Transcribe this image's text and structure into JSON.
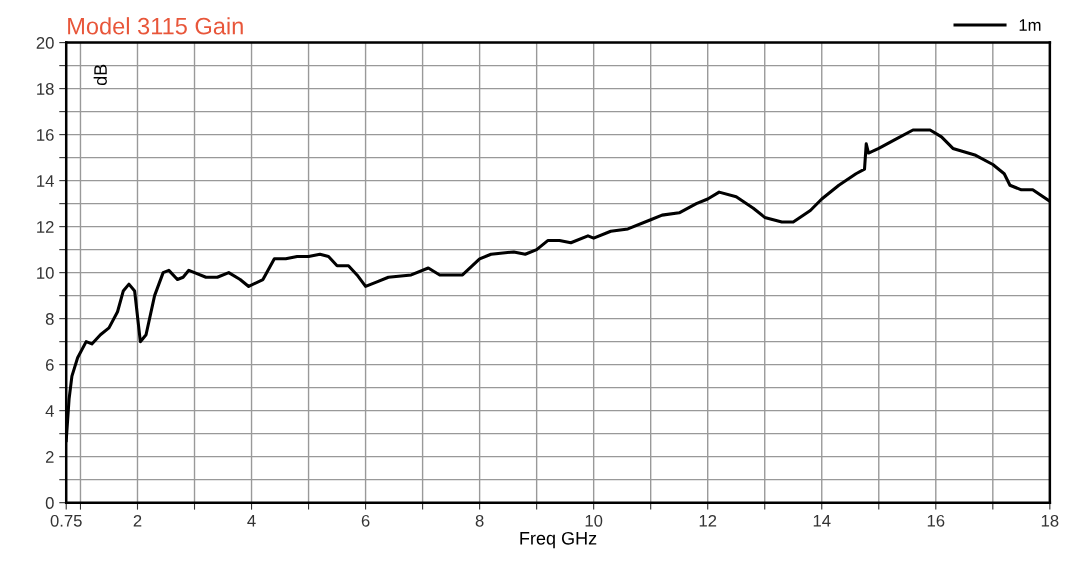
{
  "chart_data": {
    "type": "line",
    "title": "Model 3115 Gain",
    "xlabel": "Freq GHz",
    "ylabel": "dB",
    "x": [
      0.75,
      0.8,
      0.85,
      0.95,
      1.1,
      1.2,
      1.35,
      1.5,
      1.65,
      1.75,
      1.85,
      1.95,
      2.05,
      2.15,
      2.3,
      2.45,
      2.55,
      2.7,
      2.8,
      2.9,
      3.0,
      3.2,
      3.4,
      3.6,
      3.8,
      3.95,
      4.2,
      4.4,
      4.6,
      4.8,
      5.0,
      5.2,
      5.35,
      5.5,
      5.7,
      5.85,
      6.0,
      6.2,
      6.4,
      6.8,
      7.1,
      7.3,
      7.7,
      8.0,
      8.2,
      8.6,
      8.8,
      9.0,
      9.2,
      9.4,
      9.6,
      9.9,
      10.0,
      10.3,
      10.6,
      11.0,
      11.2,
      11.5,
      11.8,
      12.0,
      12.2,
      12.5,
      12.8,
      13.0,
      13.3,
      13.5,
      13.8,
      14.0,
      14.3,
      14.6,
      14.75,
      14.78,
      14.82,
      15.0,
      15.3,
      15.6,
      15.9,
      16.1,
      16.3,
      16.7,
      17.0,
      17.2,
      17.3,
      17.5,
      17.7,
      18.0
    ],
    "series": [
      {
        "name": "1m",
        "color": "#000000",
        "values": [
          2.7,
          4.5,
          5.5,
          6.3,
          7.0,
          6.9,
          7.3,
          7.6,
          8.3,
          9.2,
          9.5,
          9.2,
          7.0,
          7.3,
          9.0,
          10.0,
          10.1,
          9.7,
          9.8,
          10.1,
          10.0,
          9.8,
          9.8,
          10.0,
          9.7,
          9.4,
          9.7,
          10.6,
          10.6,
          10.7,
          10.7,
          10.8,
          10.7,
          10.3,
          10.3,
          9.9,
          9.4,
          9.6,
          9.8,
          9.9,
          10.2,
          9.9,
          9.9,
          10.6,
          10.8,
          10.9,
          10.8,
          11.0,
          11.4,
          11.4,
          11.3,
          11.6,
          11.5,
          11.8,
          11.9,
          12.3,
          12.5,
          12.6,
          13.0,
          13.2,
          13.5,
          13.3,
          12.8,
          12.4,
          12.2,
          12.2,
          12.7,
          13.2,
          13.8,
          14.3,
          14.5,
          15.6,
          15.2,
          15.4,
          15.8,
          16.2,
          16.2,
          15.9,
          15.4,
          15.1,
          14.7,
          14.3,
          13.8,
          13.6,
          13.6,
          13.1
        ]
      }
    ],
    "xlim": [
      0.75,
      18
    ],
    "xticks": [
      {
        "value": 0.75,
        "label": "0.75"
      },
      {
        "value": 1,
        "label": null
      },
      2,
      {
        "value": 3,
        "label": null
      },
      4,
      {
        "value": 5,
        "label": null
      },
      6,
      {
        "value": 7,
        "label": null
      },
      8,
      {
        "value": 9,
        "label": null
      },
      10,
      {
        "value": 11,
        "label": null
      },
      12,
      {
        "value": 13,
        "label": null
      },
      14,
      {
        "value": 15,
        "label": null
      },
      16,
      {
        "value": 17,
        "label": null
      },
      18
    ],
    "ylim": [
      0,
      20
    ],
    "yticks": [
      0,
      {
        "value": 1,
        "label": null
      },
      2,
      {
        "value": 3,
        "label": null
      },
      4,
      {
        "value": 5,
        "label": null
      },
      6,
      {
        "value": 7,
        "label": null
      },
      8,
      {
        "value": 9,
        "label": null
      },
      10,
      {
        "value": 11,
        "label": null
      },
      12,
      {
        "value": 13,
        "label": null
      },
      14,
      {
        "value": 15,
        "label": null
      },
      16,
      {
        "value": 17,
        "label": null
      },
      18,
      {
        "value": 19,
        "label": null
      },
      20
    ],
    "grid": true,
    "legend": "top right",
    "marker": "none",
    "line_style": "solid"
  }
}
